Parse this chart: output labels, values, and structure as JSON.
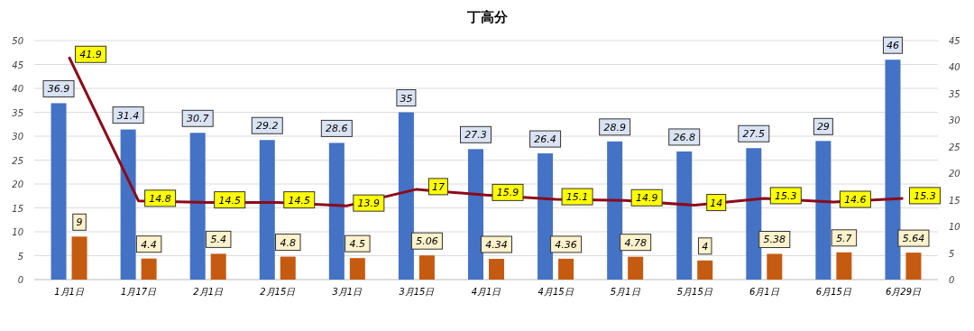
{
  "chart_data": {
    "type": "bar",
    "title": "丁高分",
    "categories": [
      "1月1日",
      "1月17日",
      "2月1日",
      "2月15日",
      "3月1日",
      "3月15日",
      "4月1日",
      "4月15日",
      "5月1日",
      "5月15日",
      "6月1日",
      "6月15日",
      "6月29日"
    ],
    "series": [
      {
        "color": "#4472c4",
        "values": [
          36.9,
          31.4,
          30.7,
          29.2,
          28.6,
          35,
          27.3,
          26.4,
          28.9,
          26.8,
          27.5,
          29,
          46
        ]
      },
      {
        "color": "#c55a11",
        "values": [
          9,
          4.4,
          5.4,
          4.8,
          4.5,
          5.06,
          4.34,
          4.36,
          4.78,
          4,
          5.38,
          5.7,
          5.64
        ]
      },
      {
        "type": "line",
        "axis": "y2",
        "color": "#8b0a1a",
        "values": [
          41.9,
          14.8,
          14.5,
          14.5,
          13.9,
          17,
          15.9,
          15.1,
          14.9,
          14,
          15.3,
          14.6,
          15.3
        ]
      }
    ],
    "ylim": [
      0,
      50
    ],
    "yticks": [
      0,
      5,
      10,
      15,
      20,
      25,
      30,
      35,
      40,
      45,
      50
    ],
    "y2lim": [
      0,
      45
    ],
    "y2ticks": [
      0,
      5,
      10,
      15,
      20,
      25,
      30,
      35,
      40,
      45
    ],
    "grid": "y",
    "data_labels": true,
    "marker": "none"
  }
}
